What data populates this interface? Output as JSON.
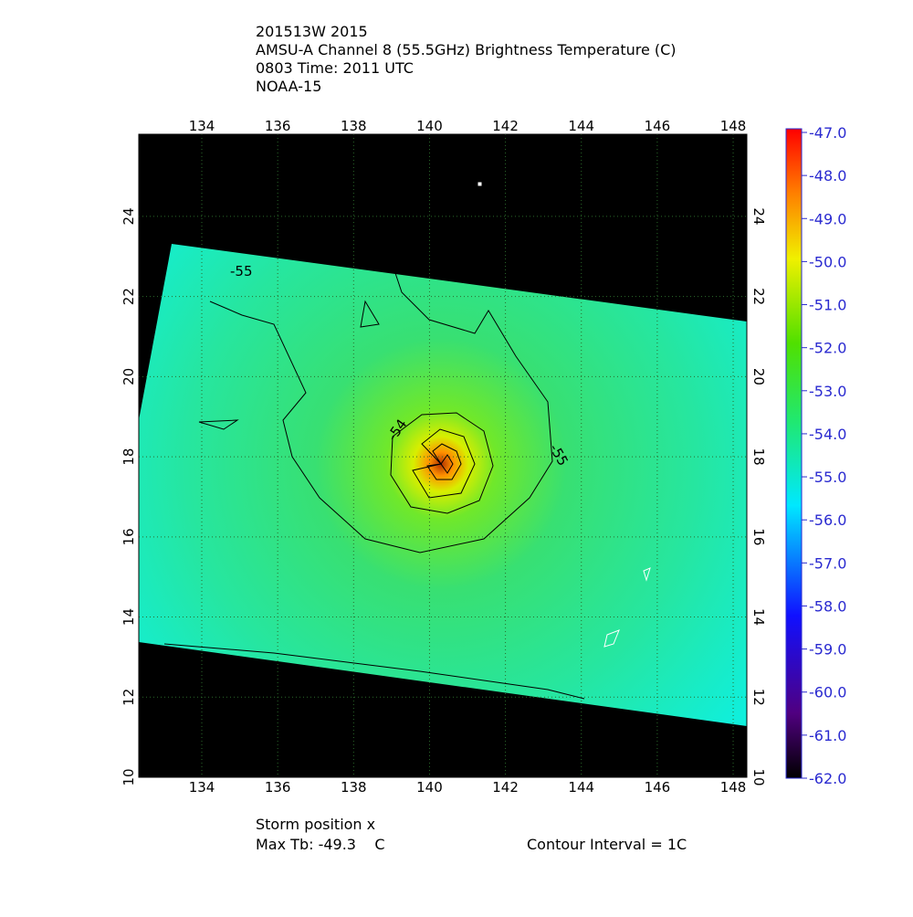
{
  "header": {
    "lines": [
      "201513W 2015",
      "AMSU-A Channel 8 (55.5GHz) Brightness Temperature (C)",
      "0803 Time: 2011 UTC",
      "NOAA-15"
    ]
  },
  "map": {
    "xlim": [
      132.34,
      148.36
    ],
    "ylim": [
      10,
      26.05
    ],
    "xticks": [
      134,
      136,
      138,
      140,
      142,
      144,
      146,
      148
    ],
    "yticks": [
      10,
      12,
      14,
      16,
      18,
      20,
      22,
      24
    ],
    "contour_labels": [
      "-55",
      "-54",
      "-55"
    ]
  },
  "colorbar": {
    "range": [
      -62,
      -47
    ],
    "ticks": [
      {
        "value": -47,
        "label": "-47.0"
      },
      {
        "value": -48,
        "label": "-48.0"
      },
      {
        "value": -49,
        "label": "-49.0"
      },
      {
        "value": -50,
        "label": "-50.0"
      },
      {
        "value": -51,
        "label": "-51.0"
      },
      {
        "value": -52,
        "label": "-52.0"
      },
      {
        "value": -53,
        "label": "-53.0"
      },
      {
        "value": -54,
        "label": "-54.0"
      },
      {
        "value": -55,
        "label": "-55.0"
      },
      {
        "value": -56,
        "label": "-56.0"
      },
      {
        "value": -57,
        "label": "-57.0"
      },
      {
        "value": -58,
        "label": "-58.0"
      },
      {
        "value": -59,
        "label": "-59.0"
      },
      {
        "value": -60,
        "label": "-60.0"
      },
      {
        "value": -61,
        "label": "-61.0"
      },
      {
        "value": -62,
        "label": "-62.0"
      }
    ]
  },
  "footer": {
    "storm": "Storm position x",
    "max_tb": "Max Tb: -49.3    C",
    "interval": "Contour Interval = 1C"
  }
}
